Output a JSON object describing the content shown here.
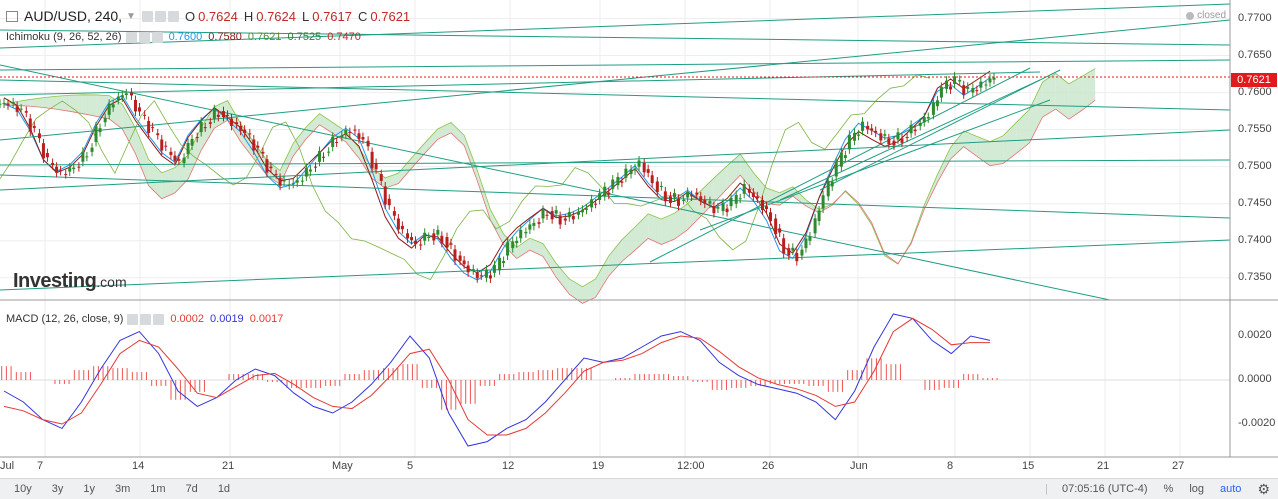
{
  "header": {
    "symbol": "AUD/USD, 240,",
    "o_label": "O",
    "o_value": "0.7624",
    "h_label": "H",
    "h_value": "0.7624",
    "l_label": "L",
    "l_value": "0.7617",
    "c_label": "C",
    "c_value": "0.7621",
    "status": "closed"
  },
  "ichimoku": {
    "label": "Ichimoku (9, 26, 52, 26)",
    "v1": "0.7600",
    "v2": "0.7580",
    "v3": "0.7621",
    "v4": "0.7525",
    "v5": "0.7470"
  },
  "macd": {
    "label": "MACD (12, 26, close, 9)",
    "v1": "0.0002",
    "v2": "0.0019",
    "v3": "0.0017"
  },
  "logo": {
    "main": "Investing",
    "suffix": ".com"
  },
  "price_axis": {
    "ticks": [
      "0.7700",
      "0.7650",
      "0.7600",
      "0.7550",
      "0.7500",
      "0.7450",
      "0.7400",
      "0.7350"
    ],
    "current": "0.7621"
  },
  "macd_axis": {
    "ticks": [
      "0.0020",
      "0.0000",
      "-0.0020"
    ]
  },
  "time_axis": [
    "7",
    "14",
    "21",
    "May",
    "5",
    "12",
    "19",
    "12:00",
    "26",
    "Jun",
    "8",
    "15",
    "21",
    "27",
    "Jul"
  ],
  "toolbar": {
    "ranges": [
      "10y",
      "3y",
      "1y",
      "3m",
      "1m",
      "7d",
      "1d"
    ],
    "time": "07:05:16 (UTC-4)",
    "pct": "%",
    "log": "log",
    "auto": "auto"
  },
  "colors": {
    "up": "#2d8a2d",
    "down": "#b81f1f",
    "trendline": "#1e9e82",
    "tenkan": "#2196f3",
    "kijun": "#8b1a1a",
    "chikou": "#7cb342",
    "cloud_bull": "#c8e6c9",
    "cloud_bear": "#f8c8c8",
    "macd_line": "#3333dd",
    "signal_line": "#e53935",
    "hist": "#ef5350",
    "current_price": "#e31a1c"
  },
  "chart_data": {
    "type": "candlestick",
    "instrument": "AUD/USD",
    "timeframe": "240",
    "ylim": [
      0.732,
      0.7725
    ],
    "series": [
      {
        "name": "price_close_path",
        "values": [
          0.7585,
          0.7575,
          0.7545,
          0.7505,
          0.749,
          0.75,
          0.752,
          0.756,
          0.759,
          0.76,
          0.757,
          0.7545,
          0.752,
          0.7505,
          0.754,
          0.756,
          0.7575,
          0.756,
          0.7545,
          0.752,
          0.749,
          0.7475,
          0.748,
          0.75,
          0.752,
          0.754,
          0.755,
          0.7535,
          0.749,
          0.744,
          0.741,
          0.7395,
          0.741,
          0.7405,
          0.738,
          0.736,
          0.735,
          0.736,
          0.739,
          0.741,
          0.7425,
          0.744,
          0.743,
          0.7435,
          0.7445,
          0.746,
          0.7475,
          0.749,
          0.7505,
          0.748,
          0.746,
          0.7455,
          0.7465,
          0.745,
          0.744,
          0.745,
          0.747,
          0.7455,
          0.743,
          0.739,
          0.738,
          0.741,
          0.746,
          0.75,
          0.7535,
          0.7555,
          0.7545,
          0.7535,
          0.754,
          0.7555,
          0.757,
          0.7605,
          0.7615,
          0.76,
          0.761,
          0.7621
        ]
      }
    ],
    "macd": {
      "macd_line": [
        -0.0005,
        -0.001,
        -0.0018,
        -0.0022,
        -0.001,
        0.0005,
        0.0018,
        0.0022,
        0.0012,
        -0.0005,
        -0.0012,
        -0.0008,
        0.0,
        0.0005,
        0.0002,
        -0.0006,
        -0.0012,
        -0.0015,
        -0.001,
        -0.0002,
        0.0008,
        0.002,
        0.001,
        -0.0015,
        -0.003,
        -0.0028,
        -0.0022,
        -0.0018,
        -0.001,
        0.0,
        0.001,
        0.0008,
        0.001,
        0.0015,
        0.002,
        0.0022,
        0.0018,
        0.0008,
        0.0002,
        -0.0002,
        -0.0004,
        -0.0006,
        -0.001,
        -0.0018,
        -0.0005,
        0.0015,
        0.003,
        0.0028,
        0.0018,
        0.0012,
        0.002,
        0.0018
      ],
      "signal_line": [
        -0.0012,
        -0.0014,
        -0.0018,
        -0.002,
        -0.0015,
        -0.0002,
        0.0012,
        0.0018,
        0.0015,
        0.0005,
        -0.0006,
        -0.0008,
        -0.0003,
        0.0002,
        0.0003,
        -0.0002,
        -0.0008,
        -0.0012,
        -0.0013,
        -0.0007,
        0.0002,
        0.0012,
        0.0014,
        0.0,
        -0.0018,
        -0.0025,
        -0.0025,
        -0.0022,
        -0.0015,
        -0.0006,
        0.0004,
        0.0008,
        0.0009,
        0.0012,
        0.0017,
        0.002,
        0.0019,
        0.0013,
        0.0006,
        0.0001,
        -0.0002,
        -0.0004,
        -0.0007,
        -0.0012,
        -0.001,
        0.0004,
        0.0022,
        0.0028,
        0.0023,
        0.0016,
        0.0017,
        0.0017
      ],
      "ylim": [
        -0.0035,
        0.0035
      ]
    }
  }
}
